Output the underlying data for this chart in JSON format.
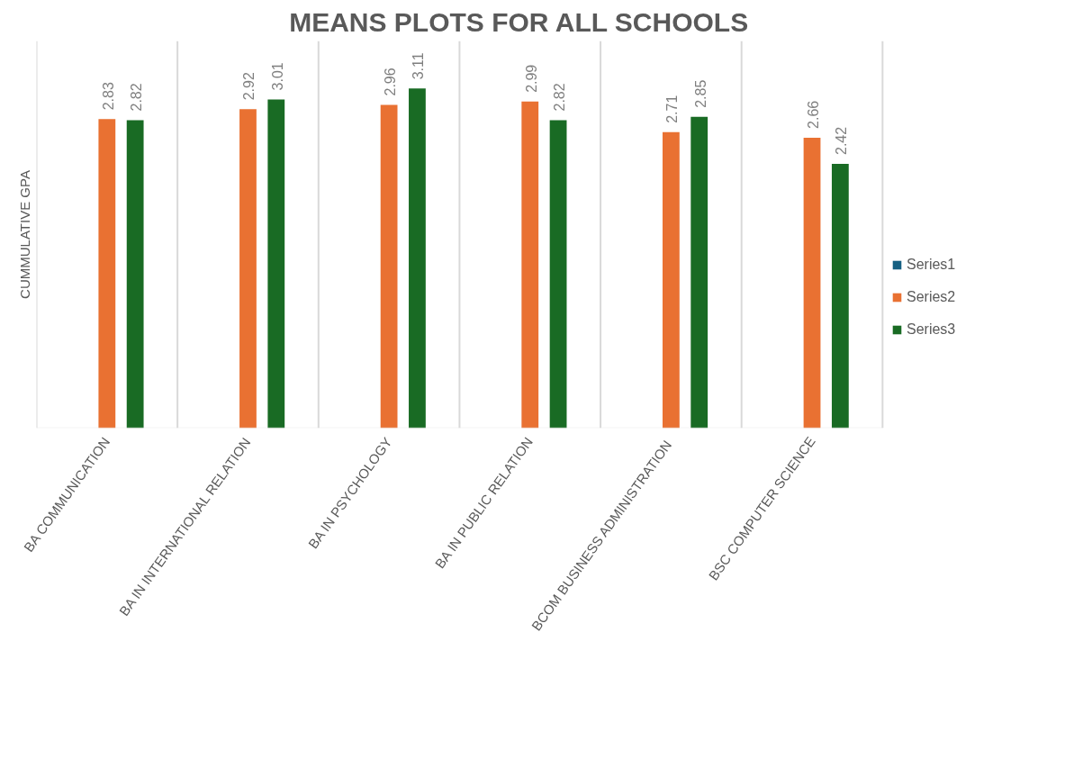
{
  "chart_data": {
    "type": "bar",
    "title": "MEANS PLOTS FOR ALL SCHOOLS",
    "ylabel": "CUMMULATIVE GPA",
    "categories": [
      "BA COMMUNICATION",
      "BA IN INTERNATIONAL RELATION",
      "BA IN PSYCHOLOGY",
      "BA IN PUBLIC RELATION",
      "BCOM  BUSINESS ADMINISTRATION",
      "BSC COMPUTER SCIENCE"
    ],
    "series": [
      {
        "name": "Series1",
        "color": "#156082",
        "values": [
          null,
          null,
          null,
          null,
          null,
          null
        ]
      },
      {
        "name": "Series2",
        "color": "#e97132",
        "values": [
          2.83,
          2.92,
          2.96,
          2.99,
          2.71,
          2.66
        ]
      },
      {
        "name": "Series3",
        "color": "#196b24",
        "values": [
          2.82,
          3.01,
          3.11,
          2.82,
          2.85,
          2.42
        ]
      }
    ],
    "data_labels": true,
    "grid": "x",
    "legend": "right"
  }
}
